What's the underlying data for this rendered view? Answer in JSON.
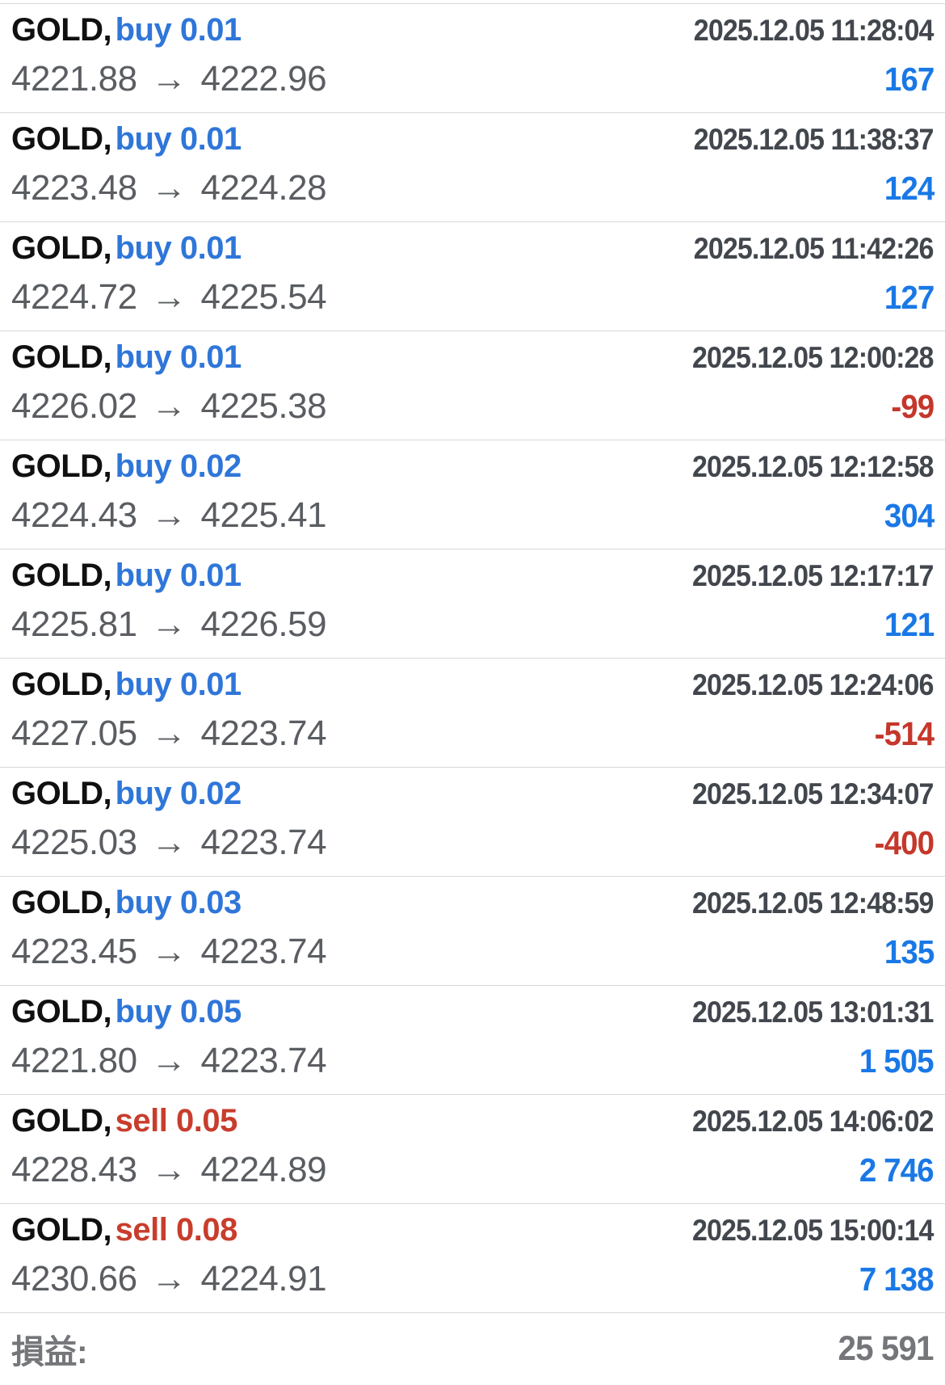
{
  "glyphs": {
    "arrow": "→"
  },
  "colors": {
    "buy": "#2f76d9",
    "sell": "#c83d2c",
    "profit_positive": "#1a78e6",
    "profit_negative": "#c5372b",
    "symbol": "#101010",
    "price": "#5a5d61",
    "timestamp": "#42464d",
    "divider": "#d8d8d8",
    "footer_text": "#74767a"
  },
  "rows": [
    {
      "symbol": "GOLD,",
      "side": "buy",
      "volume": "0.01",
      "open": "4221.88",
      "close": "4222.96",
      "time": "2025.12.05 11:28:04",
      "profit": "167"
    },
    {
      "symbol": "GOLD,",
      "side": "buy",
      "volume": "0.01",
      "open": "4223.48",
      "close": "4224.28",
      "time": "2025.12.05 11:38:37",
      "profit": "124"
    },
    {
      "symbol": "GOLD,",
      "side": "buy",
      "volume": "0.01",
      "open": "4224.72",
      "close": "4225.54",
      "time": "2025.12.05 11:42:26",
      "profit": "127"
    },
    {
      "symbol": "GOLD,",
      "side": "buy",
      "volume": "0.01",
      "open": "4226.02",
      "close": "4225.38",
      "time": "2025.12.05 12:00:28",
      "profit": "-99"
    },
    {
      "symbol": "GOLD,",
      "side": "buy",
      "volume": "0.02",
      "open": "4224.43",
      "close": "4225.41",
      "time": "2025.12.05 12:12:58",
      "profit": "304"
    },
    {
      "symbol": "GOLD,",
      "side": "buy",
      "volume": "0.01",
      "open": "4225.81",
      "close": "4226.59",
      "time": "2025.12.05 12:17:17",
      "profit": "121"
    },
    {
      "symbol": "GOLD,",
      "side": "buy",
      "volume": "0.01",
      "open": "4227.05",
      "close": "4223.74",
      "time": "2025.12.05 12:24:06",
      "profit": "-514"
    },
    {
      "symbol": "GOLD,",
      "side": "buy",
      "volume": "0.02",
      "open": "4225.03",
      "close": "4223.74",
      "time": "2025.12.05 12:34:07",
      "profit": "-400"
    },
    {
      "symbol": "GOLD,",
      "side": "buy",
      "volume": "0.03",
      "open": "4223.45",
      "close": "4223.74",
      "time": "2025.12.05 12:48:59",
      "profit": "135"
    },
    {
      "symbol": "GOLD,",
      "side": "buy",
      "volume": "0.05",
      "open": "4221.80",
      "close": "4223.74",
      "time": "2025.12.05 13:01:31",
      "profit": "1 505"
    },
    {
      "symbol": "GOLD,",
      "side": "sell",
      "volume": "0.05",
      "open": "4228.43",
      "close": "4224.89",
      "time": "2025.12.05 14:06:02",
      "profit": "2 746"
    },
    {
      "symbol": "GOLD,",
      "side": "sell",
      "volume": "0.08",
      "open": "4230.66",
      "close": "4224.91",
      "time": "2025.12.05 15:00:14",
      "profit": "7 138"
    }
  ],
  "footer": {
    "label": "損益:",
    "total": "25 591"
  }
}
